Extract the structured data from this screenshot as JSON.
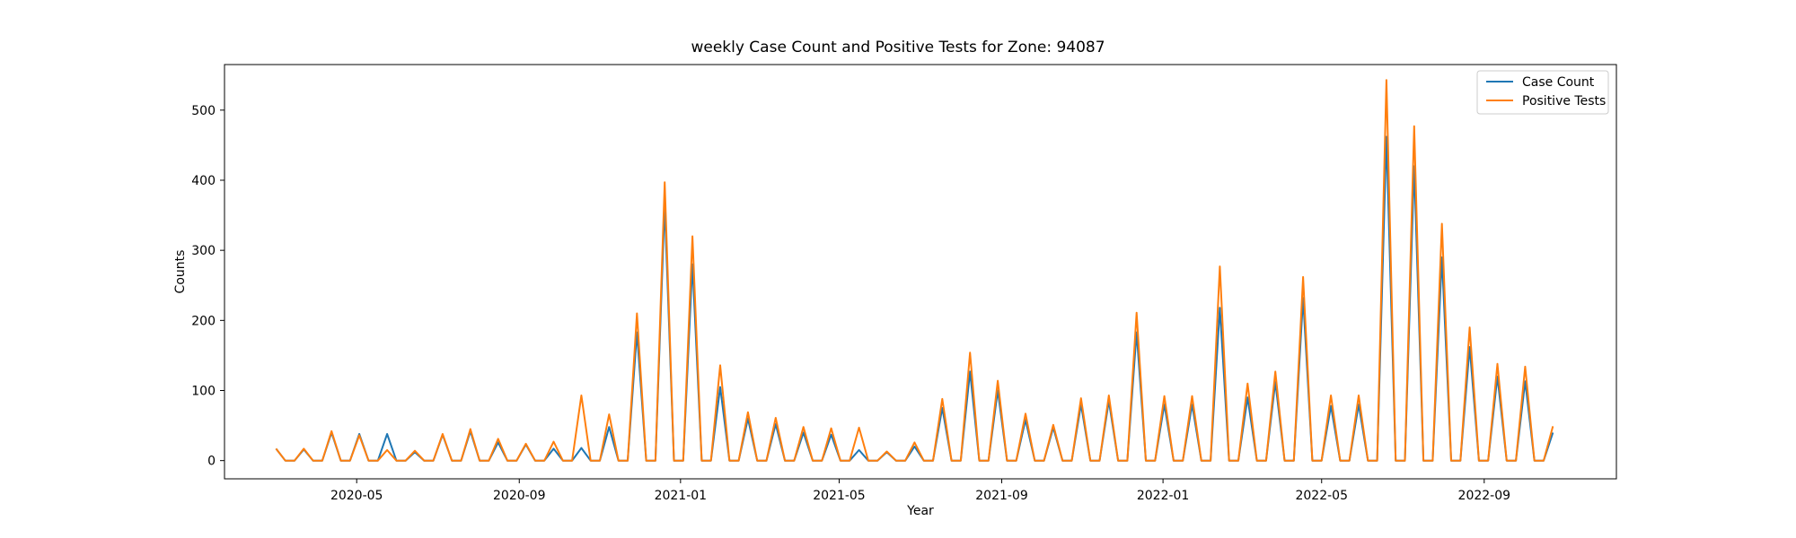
{
  "chart_data": {
    "type": "line",
    "title": "weekly Case Count and Positive Tests for Zone: 94087",
    "xlabel": "Year",
    "ylabel": "Counts",
    "xlim": [
      "2020-01-22",
      "2022-12-10"
    ],
    "ylim": [
      -26,
      565
    ],
    "x_ticks": [
      {
        "date": "2020-05-01",
        "label": "2020-05"
      },
      {
        "date": "2020-09-01",
        "label": "2020-09"
      },
      {
        "date": "2021-01-01",
        "label": "2021-01"
      },
      {
        "date": "2021-05-01",
        "label": "2021-05"
      },
      {
        "date": "2021-09-01",
        "label": "2021-09"
      },
      {
        "date": "2022-01-01",
        "label": "2022-01"
      },
      {
        "date": "2022-05-01",
        "label": "2022-05"
      },
      {
        "date": "2022-09-01",
        "label": "2022-09"
      }
    ],
    "y_ticks": [
      0,
      100,
      200,
      300,
      400,
      500
    ],
    "legend_position": "top-right",
    "grid": false,
    "x": [
      "2020-03-01",
      "2020-03-08",
      "2020-03-15",
      "2020-03-22",
      "2020-03-29",
      "2020-04-05",
      "2020-04-12",
      "2020-04-19",
      "2020-04-26",
      "2020-05-03",
      "2020-05-10",
      "2020-05-17",
      "2020-05-24",
      "2020-05-31",
      "2020-06-07",
      "2020-06-14",
      "2020-06-21",
      "2020-06-28",
      "2020-07-05",
      "2020-07-12",
      "2020-07-19",
      "2020-07-26",
      "2020-08-02",
      "2020-08-09",
      "2020-08-16",
      "2020-08-23",
      "2020-08-30",
      "2020-09-06",
      "2020-09-13",
      "2020-09-20",
      "2020-09-27",
      "2020-10-04",
      "2020-10-11",
      "2020-10-18",
      "2020-10-25",
      "2020-11-01",
      "2020-11-08",
      "2020-11-15",
      "2020-11-22",
      "2020-11-29",
      "2020-12-06",
      "2020-12-13",
      "2020-12-20",
      "2020-12-27",
      "2021-01-03",
      "2021-01-10",
      "2021-01-17",
      "2021-01-24",
      "2021-01-31",
      "2021-02-07",
      "2021-02-14",
      "2021-02-21",
      "2021-02-28",
      "2021-03-07",
      "2021-03-14",
      "2021-03-21",
      "2021-03-28",
      "2021-04-04",
      "2021-04-11",
      "2021-04-18",
      "2021-04-25",
      "2021-05-02",
      "2021-05-09",
      "2021-05-16",
      "2021-05-23",
      "2021-05-30",
      "2021-06-06",
      "2021-06-13",
      "2021-06-20",
      "2021-06-27",
      "2021-07-04",
      "2021-07-11",
      "2021-07-18",
      "2021-07-25",
      "2021-08-01",
      "2021-08-08",
      "2021-08-15",
      "2021-08-22",
      "2021-08-29",
      "2021-09-05",
      "2021-09-12",
      "2021-09-19",
      "2021-09-26",
      "2021-10-03",
      "2021-10-10",
      "2021-10-17",
      "2021-10-24",
      "2021-10-31",
      "2021-11-07",
      "2021-11-14",
      "2021-11-21",
      "2021-11-28",
      "2021-12-05",
      "2021-12-12",
      "2021-12-19",
      "2021-12-26",
      "2022-01-02",
      "2022-01-09",
      "2022-01-16",
      "2022-01-23",
      "2022-01-30",
      "2022-02-06",
      "2022-02-13",
      "2022-02-20",
      "2022-02-27",
      "2022-03-06",
      "2022-03-13",
      "2022-03-20",
      "2022-03-27",
      "2022-04-03",
      "2022-04-10",
      "2022-04-17",
      "2022-04-24",
      "2022-05-01",
      "2022-05-08",
      "2022-05-15",
      "2022-05-22",
      "2022-05-29",
      "2022-06-05",
      "2022-06-12",
      "2022-06-19",
      "2022-06-26",
      "2022-07-03",
      "2022-07-10",
      "2022-07-17",
      "2022-07-24",
      "2022-07-31",
      "2022-08-07",
      "2022-08-14",
      "2022-08-21",
      "2022-08-28",
      "2022-09-04",
      "2022-09-11",
      "2022-09-18",
      "2022-09-25",
      "2022-10-02",
      "2022-10-09",
      "2022-10-16",
      "2022-10-23"
    ],
    "series": [
      {
        "name": "Case Count",
        "color": "#1f77b4",
        "values": [
          17,
          0,
          0,
          16,
          0,
          0,
          40,
          0,
          0,
          38,
          0,
          0,
          38,
          0,
          0,
          12,
          0,
          0,
          37,
          0,
          0,
          42,
          0,
          0,
          26,
          0,
          0,
          23,
          0,
          0,
          17,
          0,
          0,
          18,
          0,
          0,
          48,
          0,
          0,
          183,
          0,
          0,
          365,
          0,
          0,
          280,
          0,
          0,
          105,
          0,
          0,
          60,
          0,
          0,
          52,
          0,
          0,
          40,
          0,
          0,
          37,
          0,
          0,
          15,
          0,
          0,
          12,
          0,
          0,
          20,
          0,
          0,
          75,
          0,
          0,
          127,
          0,
          0,
          100,
          0,
          0,
          58,
          0,
          0,
          47,
          0,
          0,
          80,
          0,
          0,
          85,
          0,
          0,
          183,
          0,
          0,
          80,
          0,
          0,
          80,
          0,
          0,
          218,
          0,
          0,
          90,
          0,
          0,
          112,
          0,
          0,
          232,
          0,
          0,
          78,
          0,
          0,
          80,
          0,
          0,
          462,
          0,
          0,
          420,
          0,
          0,
          290,
          0,
          0,
          162,
          0,
          0,
          120,
          0,
          0,
          113,
          0,
          0,
          40
        ]
      },
      {
        "name": "Positive Tests",
        "color": "#ff7f0e",
        "values": [
          17,
          0,
          0,
          17,
          0,
          0,
          42,
          0,
          0,
          36,
          0,
          0,
          15,
          0,
          0,
          14,
          0,
          0,
          38,
          0,
          0,
          45,
          0,
          0,
          31,
          0,
          0,
          24,
          0,
          0,
          27,
          0,
          0,
          93,
          0,
          0,
          66,
          0,
          0,
          210,
          0,
          0,
          397,
          0,
          0,
          320,
          0,
          0,
          136,
          0,
          0,
          69,
          0,
          0,
          61,
          0,
          0,
          48,
          0,
          0,
          46,
          0,
          0,
          47,
          0,
          0,
          13,
          0,
          0,
          26,
          0,
          0,
          88,
          0,
          0,
          154,
          0,
          0,
          114,
          0,
          0,
          67,
          0,
          0,
          51,
          0,
          0,
          89,
          0,
          0,
          93,
          0,
          0,
          211,
          0,
          0,
          92,
          0,
          0,
          92,
          0,
          0,
          277,
          0,
          0,
          110,
          0,
          0,
          127,
          0,
          0,
          262,
          0,
          0,
          93,
          0,
          0,
          93,
          0,
          0,
          543,
          0,
          0,
          477,
          0,
          0,
          338,
          0,
          0,
          190,
          0,
          0,
          138,
          0,
          0,
          134,
          0,
          0,
          49
        ]
      }
    ]
  }
}
